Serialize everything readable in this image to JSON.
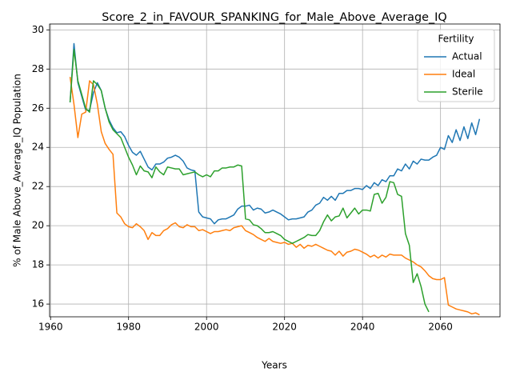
{
  "chart_data": {
    "type": "line",
    "title": "Score_2_in_FAVOUR_SPANKING_for_Male_Above_Average_IQ",
    "x_label": "Years",
    "y_label": "% of Male Above_Average_IQ Population",
    "legend_title": "Fertility",
    "legend_position": "upper right",
    "grid": true,
    "xlim": [
      1959.75,
      2075.25
    ],
    "ylim": [
      15.35,
      30.3
    ],
    "xticks": [
      1960,
      1980,
      2000,
      2020,
      2040,
      2060
    ],
    "yticks": [
      16,
      18,
      20,
      22,
      24,
      26,
      28,
      30
    ],
    "x": [
      1965,
      1966,
      1967,
      1968,
      1969,
      1970,
      1971,
      1972,
      1973,
      1974,
      1975,
      1976,
      1977,
      1978,
      1979,
      1980,
      1981,
      1982,
      1983,
      1984,
      1985,
      1986,
      1987,
      1988,
      1989,
      1990,
      1991,
      1992,
      1993,
      1994,
      1995,
      1996,
      1997,
      1998,
      1999,
      2000,
      2001,
      2002,
      2003,
      2004,
      2005,
      2006,
      2007,
      2008,
      2009,
      2010,
      2011,
      2012,
      2013,
      2014,
      2015,
      2016,
      2017,
      2018,
      2019,
      2020,
      2021,
      2022,
      2023,
      2024,
      2025,
      2026,
      2027,
      2028,
      2029,
      2030,
      2031,
      2032,
      2033,
      2034,
      2035,
      2036,
      2037,
      2038,
      2039,
      2040,
      2041,
      2042,
      2043,
      2044,
      2045,
      2046,
      2047,
      2048,
      2049,
      2050,
      2051,
      2052,
      2053,
      2054,
      2055,
      2056,
      2057,
      2058,
      2059,
      2060,
      2061,
      2062,
      2063,
      2064,
      2065,
      2066,
      2067,
      2068,
      2069,
      2070
    ],
    "series": [
      {
        "name": "Actual",
        "color": "#1f77b4",
        "values": [
          26.3,
          29.3,
          27.3,
          26.6,
          25.9,
          25.9,
          26.8,
          27.3,
          26.9,
          26.0,
          25.4,
          25.0,
          24.75,
          24.8,
          24.55,
          24.1,
          23.75,
          23.6,
          23.8,
          23.4,
          23.0,
          22.85,
          23.15,
          23.15,
          23.25,
          23.45,
          23.5,
          23.6,
          23.5,
          23.3,
          22.95,
          22.85,
          22.8,
          20.7,
          20.45,
          20.4,
          20.35,
          20.1,
          20.3,
          20.35,
          20.35,
          20.45,
          20.55,
          20.85,
          21.0,
          21.0,
          21.05,
          20.8,
          20.9,
          20.85,
          20.65,
          20.7,
          20.8,
          20.7,
          20.6,
          20.45,
          20.3,
          20.35,
          20.35,
          20.4,
          20.45,
          20.7,
          20.8,
          21.05,
          21.15,
          21.45,
          21.3,
          21.5,
          21.3,
          21.65,
          21.65,
          21.8,
          21.8,
          21.9,
          21.9,
          21.85,
          22.05,
          21.9,
          22.2,
          22.05,
          22.35,
          22.25,
          22.55,
          22.55,
          22.9,
          22.8,
          23.15,
          22.9,
          23.3,
          23.15,
          23.4,
          23.35,
          23.35,
          23.5,
          23.6,
          24.0,
          23.9,
          24.6,
          24.25,
          24.9,
          24.35,
          25.05,
          24.45,
          25.25,
          24.65,
          25.45
        ]
      },
      {
        "name": "Ideal",
        "color": "#ff7f0e",
        "values": [
          27.6,
          26.2,
          24.5,
          25.7,
          25.8,
          27.4,
          27.2,
          26.2,
          24.8,
          24.2,
          23.9,
          23.65,
          20.65,
          20.45,
          20.1,
          19.95,
          19.9,
          20.1,
          19.95,
          19.75,
          19.3,
          19.65,
          19.5,
          19.5,
          19.75,
          19.85,
          20.05,
          20.15,
          19.95,
          19.9,
          20.05,
          19.95,
          19.95,
          19.75,
          19.8,
          19.7,
          19.6,
          19.7,
          19.7,
          19.75,
          19.8,
          19.75,
          19.9,
          19.95,
          20.0,
          19.75,
          19.65,
          19.55,
          19.4,
          19.3,
          19.2,
          19.35,
          19.2,
          19.15,
          19.1,
          19.15,
          19.05,
          19.1,
          18.9,
          19.05,
          18.85,
          19.0,
          18.95,
          19.05,
          18.95,
          18.85,
          18.75,
          18.7,
          18.5,
          18.7,
          18.45,
          18.65,
          18.7,
          18.8,
          18.75,
          18.65,
          18.55,
          18.4,
          18.5,
          18.35,
          18.5,
          18.4,
          18.55,
          18.5,
          18.5,
          18.5,
          18.35,
          18.25,
          18.15,
          18.0,
          17.9,
          17.7,
          17.45,
          17.3,
          17.25,
          17.25,
          17.35,
          15.95,
          15.85,
          15.75,
          15.7,
          15.65,
          15.6,
          15.5,
          15.55,
          15.45
        ]
      },
      {
        "name": "Sterile",
        "color": "#2ca02c",
        "values": [
          26.3,
          29.0,
          27.4,
          26.7,
          26.0,
          25.8,
          27.4,
          27.2,
          26.9,
          26.0,
          25.3,
          24.9,
          24.7,
          24.5,
          24.0,
          23.5,
          23.1,
          22.6,
          23.05,
          22.8,
          22.75,
          22.45,
          23.0,
          22.75,
          22.6,
          23.0,
          22.95,
          22.9,
          22.9,
          22.6,
          22.65,
          22.7,
          22.75,
          22.6,
          22.5,
          22.6,
          22.5,
          22.8,
          22.8,
          22.95,
          22.95,
          23.0,
          23.0,
          23.1,
          23.05,
          20.35,
          20.3,
          20.05,
          20.0,
          19.85,
          19.65,
          19.65,
          19.7,
          19.6,
          19.5,
          19.3,
          19.2,
          19.1,
          19.2,
          19.3,
          19.4,
          19.55,
          19.5,
          19.5,
          19.75,
          20.2,
          20.55,
          20.25,
          20.45,
          20.5,
          20.9,
          20.4,
          20.65,
          20.9,
          20.6,
          20.8,
          20.8,
          20.75,
          21.6,
          21.65,
          21.15,
          21.45,
          22.25,
          22.2,
          21.6,
          21.5,
          19.6,
          19.0,
          17.1,
          17.55,
          16.9,
          16.0,
          15.6,
          null,
          null,
          null,
          null,
          null,
          null,
          null,
          null,
          null,
          null,
          null,
          null,
          null
        ]
      }
    ]
  }
}
